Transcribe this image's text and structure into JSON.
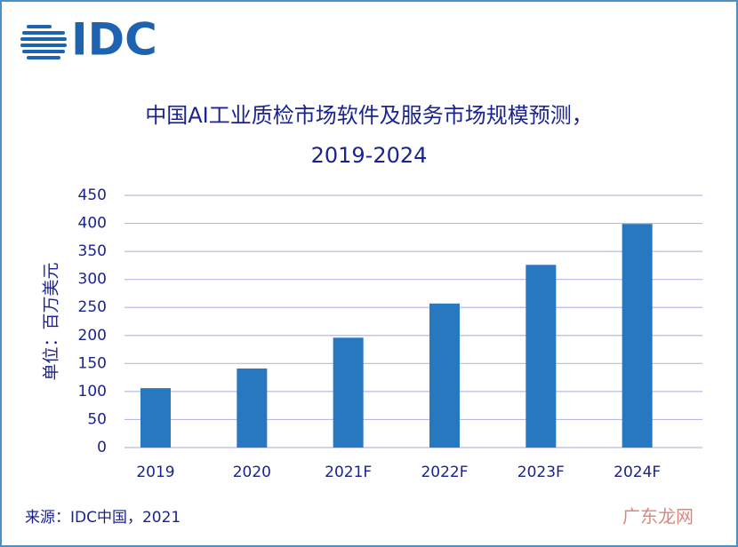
{
  "logo": "IDC",
  "chart_data": {
    "type": "bar",
    "title_lines": [
      "中国AI工业质检市场软件及服务市场规模预测，",
      "2019-2024"
    ],
    "y_label": "单位：百万美元",
    "categories": [
      "2019",
      "2020",
      "2021F",
      "2022F",
      "2023F",
      "2024F"
    ],
    "values": [
      106,
      141,
      196,
      257,
      326,
      399
    ],
    "color": "#2878c0",
    "ylim": [
      0,
      450
    ],
    "yticks": [
      0,
      50,
      100,
      150,
      200,
      250,
      300,
      350,
      400,
      450
    ],
    "grid": true
  },
  "source": "来源：IDC中国，2021",
  "watermark": "广东龙网"
}
